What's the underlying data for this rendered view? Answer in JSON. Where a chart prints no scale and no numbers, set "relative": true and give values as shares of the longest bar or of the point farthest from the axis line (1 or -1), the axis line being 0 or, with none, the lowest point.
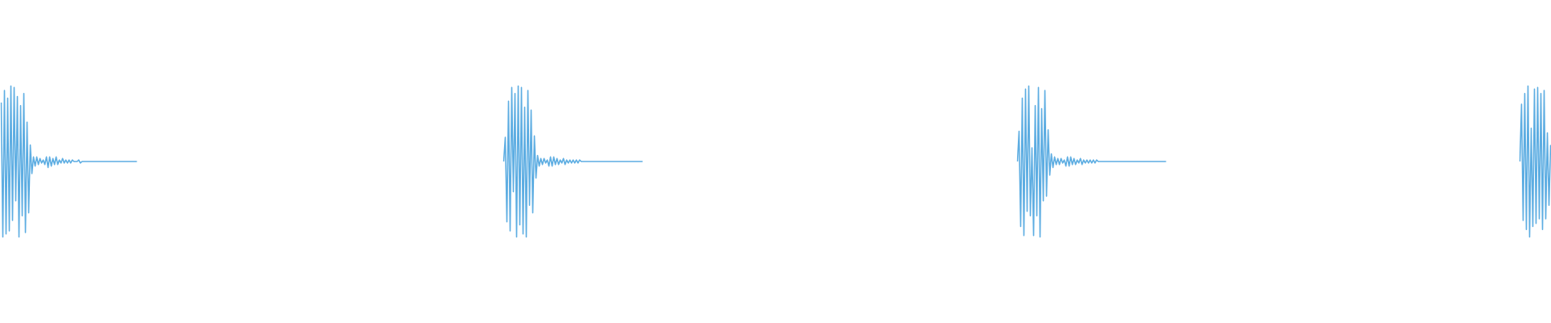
{
  "chart_data": [
    {
      "type": "line",
      "relative": true,
      "color": "#5dade2",
      "categories": [
        null,
        null,
        null,
        null,
        null,
        null,
        null,
        null,
        null,
        null,
        null,
        null,
        null,
        null,
        null,
        null,
        null,
        null,
        null,
        null,
        null,
        null,
        null,
        null,
        null,
        null,
        null,
        null,
        null,
        null,
        null,
        null,
        null,
        null,
        null,
        null,
        null,
        null,
        null,
        null,
        null,
        null,
        null,
        null,
        null,
        null,
        null,
        null,
        null,
        null,
        null,
        null,
        null,
        null,
        null,
        null,
        null,
        null,
        null,
        null,
        null,
        null,
        null,
        null,
        null,
        null,
        null,
        null,
        null,
        null,
        null,
        null,
        null,
        null,
        null,
        null,
        null,
        null,
        null,
        null,
        null,
        null,
        null,
        null,
        null
      ],
      "values": [
        0.89,
        0.0,
        0.97,
        0.02,
        0.92,
        0.04,
        1.0,
        0.11,
        0.99,
        0.24,
        0.93,
        0.0,
        0.87,
        0.14,
        0.95,
        0.03,
        0.76,
        0.16,
        0.61,
        0.42,
        0.53,
        0.47,
        0.53,
        0.48,
        0.52,
        0.49,
        0.51,
        0.48,
        0.53,
        0.46,
        0.53,
        0.47,
        0.52,
        0.48,
        0.53,
        0.48,
        0.51,
        0.49,
        0.52,
        0.49,
        0.51,
        0.49,
        0.51,
        0.49,
        0.51,
        0.5,
        0.5,
        0.5,
        0.51,
        0.49,
        0.5,
        0.5,
        0.5,
        0.5,
        0.5,
        0.5,
        0.5,
        0.5,
        0.5,
        0.5,
        0.5,
        0.5,
        0.5,
        0.5,
        0.5,
        0.5,
        0.5,
        0.5,
        0.5,
        0.5,
        0.5,
        0.5,
        0.5,
        0.5,
        0.5,
        0.5,
        0.5,
        0.5,
        0.5,
        0.5,
        0.5,
        0.5,
        0.5,
        0.5,
        0.5
      ]
    },
    {
      "type": "line",
      "relative": true,
      "color": "#5dade2",
      "categories": [
        null,
        null,
        null,
        null,
        null,
        null,
        null,
        null,
        null,
        null,
        null,
        null,
        null,
        null,
        null,
        null,
        null,
        null,
        null,
        null,
        null,
        null,
        null,
        null,
        null,
        null,
        null,
        null,
        null,
        null,
        null,
        null,
        null,
        null,
        null,
        null,
        null,
        null,
        null,
        null,
        null,
        null,
        null,
        null,
        null,
        null,
        null,
        null,
        null,
        null,
        null,
        null,
        null,
        null,
        null,
        null,
        null,
        null,
        null,
        null,
        null,
        null,
        null,
        null,
        null,
        null,
        null,
        null,
        null,
        null,
        null,
        null,
        null,
        null,
        null,
        null,
        null,
        null,
        null,
        null,
        null,
        null,
        null,
        null,
        null,
        null,
        null
      ],
      "values": [
        0.5,
        0.66,
        0.1,
        0.9,
        0.04,
        0.99,
        0.3,
        0.95,
        0.0,
        1.0,
        0.08,
        0.99,
        0.02,
        0.86,
        0.0,
        0.97,
        0.21,
        0.84,
        0.16,
        0.67,
        0.39,
        0.54,
        0.47,
        0.52,
        0.48,
        0.52,
        0.49,
        0.51,
        0.47,
        0.53,
        0.47,
        0.53,
        0.48,
        0.52,
        0.48,
        0.51,
        0.49,
        0.52,
        0.48,
        0.51,
        0.49,
        0.51,
        0.49,
        0.51,
        0.49,
        0.51,
        0.49,
        0.51,
        0.5,
        0.5,
        0.5,
        0.5,
        0.5,
        0.5,
        0.5,
        0.5,
        0.5,
        0.5,
        0.5,
        0.5,
        0.5,
        0.5,
        0.5,
        0.5,
        0.5,
        0.5,
        0.5,
        0.5,
        0.5,
        0.5,
        0.5,
        0.5,
        0.5,
        0.5,
        0.5,
        0.5,
        0.5,
        0.5,
        0.5,
        0.5,
        0.5,
        0.5,
        0.5,
        0.5,
        0.5,
        0.5,
        0.5
      ]
    },
    {
      "type": "line",
      "relative": true,
      "color": "#5dade2",
      "categories": [
        null,
        null,
        null,
        null,
        null,
        null,
        null,
        null,
        null,
        null,
        null,
        null,
        null,
        null,
        null,
        null,
        null,
        null,
        null,
        null,
        null,
        null,
        null,
        null,
        null,
        null,
        null,
        null,
        null,
        null,
        null,
        null,
        null,
        null,
        null,
        null,
        null,
        null,
        null,
        null,
        null,
        null,
        null,
        null,
        null,
        null,
        null,
        null,
        null,
        null,
        null,
        null,
        null,
        null,
        null,
        null,
        null,
        null,
        null,
        null,
        null,
        null,
        null,
        null,
        null,
        null,
        null,
        null,
        null,
        null,
        null,
        null,
        null,
        null,
        null,
        null,
        null,
        null,
        null,
        null,
        null,
        null,
        null,
        null,
        null,
        null,
        null,
        null,
        null,
        null,
        null,
        null,
        null
      ],
      "values": [
        0.5,
        0.7,
        0.07,
        0.92,
        0.01,
        0.98,
        0.17,
        1.0,
        0.14,
        0.59,
        0.01,
        0.87,
        0.14,
        0.99,
        0.0,
        0.85,
        0.24,
        0.97,
        0.27,
        0.71,
        0.41,
        0.55,
        0.46,
        0.53,
        0.48,
        0.52,
        0.48,
        0.52,
        0.49,
        0.51,
        0.47,
        0.53,
        0.47,
        0.53,
        0.48,
        0.52,
        0.48,
        0.51,
        0.49,
        0.52,
        0.48,
        0.51,
        0.49,
        0.51,
        0.49,
        0.51,
        0.49,
        0.51,
        0.49,
        0.51,
        0.5,
        0.5,
        0.5,
        0.5,
        0.5,
        0.5,
        0.5,
        0.5,
        0.5,
        0.5,
        0.5,
        0.5,
        0.5,
        0.5,
        0.5,
        0.5,
        0.5,
        0.5,
        0.5,
        0.5,
        0.5,
        0.5,
        0.5,
        0.5,
        0.5,
        0.5,
        0.5,
        0.5,
        0.5,
        0.5,
        0.5,
        0.5,
        0.5,
        0.5,
        0.5,
        0.5,
        0.5,
        0.5,
        0.5,
        0.5,
        0.5,
        0.5,
        0.5
      ]
    },
    {
      "type": "line",
      "relative": true,
      "color": "#5dade2",
      "categories": [
        null,
        null,
        null,
        null,
        null,
        null,
        null,
        null,
        null,
        null,
        null,
        null,
        null,
        null,
        null,
        null,
        null,
        null,
        null,
        null
      ],
      "values": [
        0.5,
        0.88,
        0.11,
        0.95,
        0.05,
        1.0,
        0.0,
        0.72,
        0.07,
        0.98,
        0.09,
        0.99,
        0.12,
        0.95,
        0.05,
        0.97,
        0.12,
        0.69,
        0.21,
        0.61
      ]
    }
  ]
}
